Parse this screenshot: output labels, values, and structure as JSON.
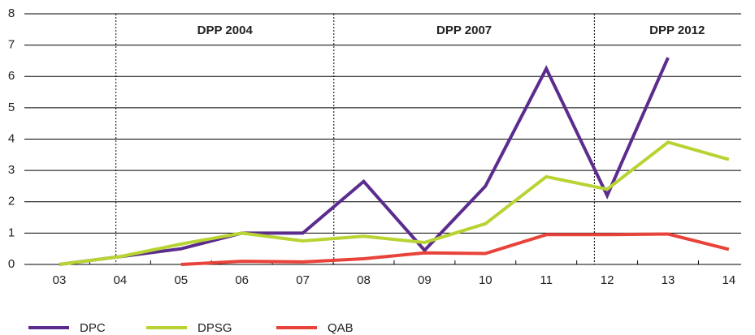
{
  "chart_data": {
    "type": "line",
    "categories": [
      "03",
      "04",
      "05",
      "06",
      "07",
      "08",
      "09",
      "10",
      "11",
      "12",
      "13",
      "14"
    ],
    "series": [
      {
        "name": "DPC",
        "color": "#5b2c8e",
        "values": [
          0,
          0.25,
          0.5,
          1.0,
          1.0,
          2.65,
          0.45,
          2.5,
          6.25,
          2.2,
          6.6,
          null
        ]
      },
      {
        "name": "DPSG",
        "color": "#b7d433",
        "values": [
          0,
          0.25,
          0.65,
          1.0,
          0.75,
          0.9,
          0.7,
          1.3,
          2.8,
          2.4,
          3.9,
          3.35
        ]
      },
      {
        "name": "QAB",
        "color": "#e8433a",
        "values": [
          null,
          null,
          0,
          0.1,
          0.08,
          0.18,
          0.37,
          0.35,
          0.95,
          0.95,
          0.97,
          0.48
        ]
      }
    ],
    "annotations": [
      "DPP 2004",
      "DPP 2007",
      "DPP 2012"
    ],
    "ylim": [
      0,
      8
    ],
    "yticks": [
      0,
      1,
      2,
      3,
      4,
      5,
      6,
      7,
      8
    ],
    "grid": true
  }
}
